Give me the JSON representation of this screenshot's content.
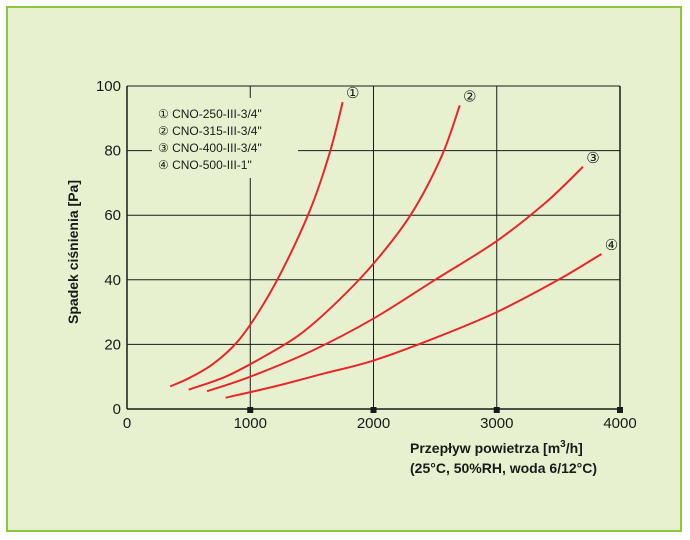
{
  "chart_data": {
    "type": "line",
    "xlabel_line1_main": "Przepływ  powietrza [m",
    "xlabel_line1_sup": "3",
    "xlabel_line1_end": "/h]",
    "xlabel_line2": "(25°C, 50%RH, woda 6/12°C)",
    "ylabel": "Spadek  ciśnienia [Pa]",
    "xlim": [
      0,
      4000
    ],
    "ylim": [
      0,
      100
    ],
    "x_ticks": [
      0,
      1000,
      2000,
      3000,
      4000
    ],
    "y_ticks": [
      0,
      20,
      40,
      60,
      80,
      100
    ],
    "grid": true,
    "legend_position": "top-left",
    "series": [
      {
        "name": "CNO-250-III-3/4\"",
        "marker": "①",
        "color": "#e8262b",
        "points": [
          [
            350,
            7
          ],
          [
            500,
            9.5
          ],
          [
            700,
            14
          ],
          [
            900,
            21
          ],
          [
            1100,
            32
          ],
          [
            1300,
            46
          ],
          [
            1500,
            63
          ],
          [
            1650,
            80
          ],
          [
            1750,
            95
          ]
        ]
      },
      {
        "name": "CNO-315-III-3/4\"",
        "marker": "②",
        "color": "#e8262b",
        "points": [
          [
            500,
            6
          ],
          [
            800,
            10
          ],
          [
            1100,
            16
          ],
          [
            1400,
            23
          ],
          [
            1700,
            33
          ],
          [
            2000,
            45
          ],
          [
            2300,
            60
          ],
          [
            2550,
            78
          ],
          [
            2700,
            94
          ]
        ]
      },
      {
        "name": "CNO-400-III-3/4\"",
        "marker": "③",
        "color": "#e8262b",
        "points": [
          [
            650,
            5.5
          ],
          [
            1000,
            10
          ],
          [
            1500,
            18
          ],
          [
            2000,
            28
          ],
          [
            2500,
            40
          ],
          [
            3000,
            52
          ],
          [
            3400,
            64
          ],
          [
            3700,
            75
          ]
        ]
      },
      {
        "name": "CNO-500-III-1\"",
        "marker": "④",
        "color": "#e8262b",
        "points": [
          [
            800,
            3.5
          ],
          [
            1200,
            7
          ],
          [
            1600,
            11
          ],
          [
            2000,
            15
          ],
          [
            2500,
            22
          ],
          [
            3000,
            30
          ],
          [
            3500,
            40
          ],
          [
            3850,
            48
          ]
        ]
      }
    ],
    "legend_labels": [
      "① CNO-250-III-3/4\"",
      "② CNO-315-III-3/4\"",
      "③ CNO-400-III-3/4\"",
      "④ CNO-500-III-1\""
    ]
  }
}
